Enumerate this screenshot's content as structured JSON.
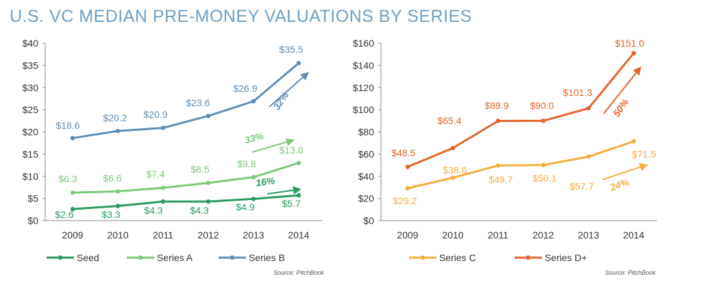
{
  "title": "U.S. VC MEDIAN PRE-MONEY VALUATIONS BY SERIES",
  "chart_data": [
    {
      "type": "line",
      "categories": [
        "2009",
        "2010",
        "2011",
        "2012",
        "2013",
        "2014"
      ],
      "yticks": [
        "$0",
        "$5",
        "$10",
        "$15",
        "$20",
        "$25",
        "$30",
        "$35",
        "$40"
      ],
      "ylim": [
        0,
        40
      ],
      "grid": false,
      "legend_position": "bottom",
      "source": "Source: PitchBook",
      "series": [
        {
          "name": "Seed",
          "color": "#2a9a5e",
          "values": [
            2.6,
            3.3,
            4.3,
            4.3,
            4.9,
            5.7
          ],
          "labels": [
            "$2.6",
            "$3.3",
            "$4.3",
            "$4.3",
            "$4.9",
            "$5.7"
          ],
          "growth": "16%"
        },
        {
          "name": "Series A",
          "color": "#7ec87a",
          "values": [
            6.3,
            6.6,
            7.4,
            8.5,
            9.8,
            13.0
          ],
          "labels": [
            "$6.3",
            "$6.6",
            "$7.4",
            "$8.5",
            "$9.8",
            "$13.0"
          ],
          "growth": "33%"
        },
        {
          "name": "Series B",
          "color": "#5f8db4",
          "values": [
            18.6,
            20.2,
            20.9,
            23.6,
            26.9,
            35.5
          ],
          "labels": [
            "$18.6",
            "$20.2",
            "$20.9",
            "$23.6",
            "$26.9",
            "$35.5"
          ],
          "growth": "32%"
        }
      ]
    },
    {
      "type": "line",
      "categories": [
        "2009",
        "2010",
        "2011",
        "2012",
        "2013",
        "2014"
      ],
      "yticks": [
        "$0",
        "$20",
        "$40",
        "$60",
        "$80",
        "$100",
        "$120",
        "$140",
        "$160"
      ],
      "ylim": [
        0,
        160
      ],
      "grid": false,
      "legend_position": "bottom",
      "source": "Source: PitchBook",
      "series": [
        {
          "name": "Series C",
          "color": "#f4ad3d",
          "values": [
            29.2,
            38.6,
            49.7,
            50.1,
            57.7,
            71.5
          ],
          "labels": [
            "$29.2",
            "$38.6",
            "$49.7",
            "$50.1",
            "$57.7",
            "$71.5"
          ],
          "growth": "24%"
        },
        {
          "name": "Series D+",
          "color": "#e2632b",
          "values": [
            48.5,
            65.4,
            89.9,
            90.0,
            101.3,
            151.0
          ],
          "labels": [
            "$48.5",
            "$65.4",
            "$89.9",
            "$90.0",
            "$101.3",
            "$151.0"
          ],
          "growth": "50%"
        }
      ]
    }
  ]
}
